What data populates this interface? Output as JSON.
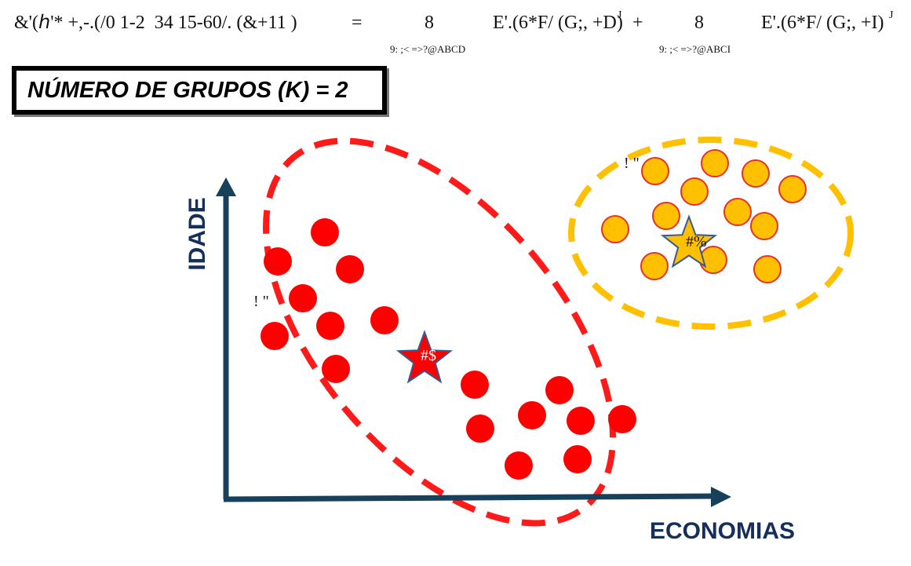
{
  "formula": {
    "main_left": "&'(ℎ'* +,-.(/0 1-2  34 15-60/. (&+11 )",
    "equals": "=",
    "eight_1": "8",
    "term_1": "E'.(6*F/ (G;, +D)",
    "sup_1": "J",
    "plus": "+",
    "eight_2": "8",
    "term_2": "E'.(6*F/ (G;, +I)",
    "sup_2": "J",
    "sub_1": "9: ;< =>?@ABCD",
    "sub_2": "9: ;< =>?@ABCI"
  },
  "title": "NÚMERO DE GRUPOS (K) = 2",
  "axes": {
    "ylabel": "IDADE",
    "xlabel": "ECONOMIAS"
  },
  "labels": {
    "red_point": "! \"",
    "yellow_point": "! \"",
    "red_centroid": "#$",
    "yellow_centroid": "#%"
  },
  "colors": {
    "red": "#ff0000",
    "yellow": "#ffc000",
    "yellow_stroke": "#e8302a",
    "red_dash": "#ff1a1a",
    "yellow_dash": "#ffc000",
    "axis": "#17415a",
    "star_stroke": "#3a5a8c"
  }
}
